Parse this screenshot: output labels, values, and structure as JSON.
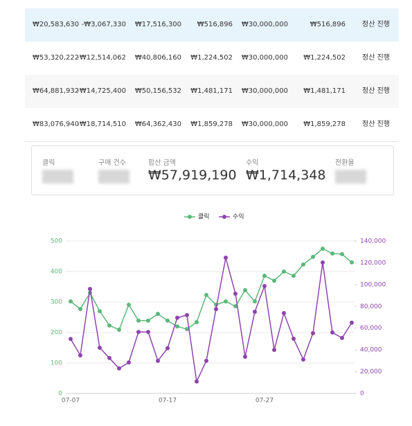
{
  "table": {
    "rows": [
      [
        "₩20,583,630",
        "-₩3,067,330",
        "₩17,516,300",
        "₩516,896",
        "₩30,000,000",
        "₩516,896",
        "정산 진행"
      ],
      [
        "₩53,320,222",
        "-₩12,514,062",
        "₩40,806,160",
        "₩1,224,502",
        "₩30,000,000",
        "₩1,224,502",
        "정산 진행"
      ],
      [
        "₩64,881,932",
        "-₩14,725,400",
        "₩50,156,532",
        "₩1,481,171",
        "₩30,000,000",
        "₩1,481,171",
        "정산 진행"
      ],
      [
        "₩83,076,940",
        "-₩18,714,510",
        "₩64,362,430",
        "₩1,859,278",
        "₩30,000,000",
        "₩1,859,278",
        "정산 진행"
      ]
    ]
  },
  "summary": {
    "items": [
      {
        "label": "클릭"
      },
      {
        "label": "구매 건수"
      },
      {
        "label": "합산 금액",
        "value": "₩57,919,190"
      },
      {
        "label": "수익",
        "value": "₩1,714,348"
      },
      {
        "label": "전환율"
      }
    ]
  },
  "chart_data": {
    "type": "line",
    "categories": [
      "07-07",
      null,
      null,
      null,
      null,
      null,
      null,
      null,
      null,
      null,
      "07-17",
      null,
      null,
      null,
      null,
      null,
      null,
      null,
      null,
      null,
      "07-27",
      null,
      null,
      null,
      null,
      null,
      null,
      null,
      null,
      null
    ],
    "series": [
      {
        "name": "클릭",
        "color": "#5cb87a",
        "values": [
          302,
          277,
          330,
          270,
          223,
          209,
          291,
          239,
          239,
          261,
          239,
          220,
          211,
          234,
          323,
          291,
          302,
          286,
          339,
          302,
          386,
          370,
          400,
          386,
          423,
          448,
          475,
          459,
          457,
          430
        ]
      },
      {
        "name": "수익",
        "color": "#8e44ad",
        "axis": "y2",
        "values": [
          50000,
          35000,
          96000,
          42000,
          32500,
          23000,
          28500,
          56500,
          56500,
          30000,
          41500,
          69500,
          72000,
          11000,
          30000,
          77500,
          124700,
          91600,
          33700,
          75000,
          98600,
          40000,
          73800,
          50300,
          31200,
          55400,
          120300,
          56000,
          51000,
          65000
        ]
      }
    ],
    "ylim": [
      0,
      500
    ],
    "yticks": [
      0,
      100,
      200,
      300,
      400,
      500
    ],
    "y2lim": [
      0,
      140000
    ],
    "y2ticks": [
      0,
      {
        "value": 20000,
        "label": "20,000"
      },
      {
        "value": 40000,
        "label": "40,000"
      },
      {
        "value": 60000,
        "label": "60,000"
      },
      {
        "value": 80000,
        "label": "80,000"
      },
      {
        "value": 100000,
        "label": "100,000"
      },
      {
        "value": 120000,
        "label": "120,000"
      },
      {
        "value": 140000,
        "label": "140,000"
      }
    ],
    "grid": true,
    "legend": "top"
  }
}
